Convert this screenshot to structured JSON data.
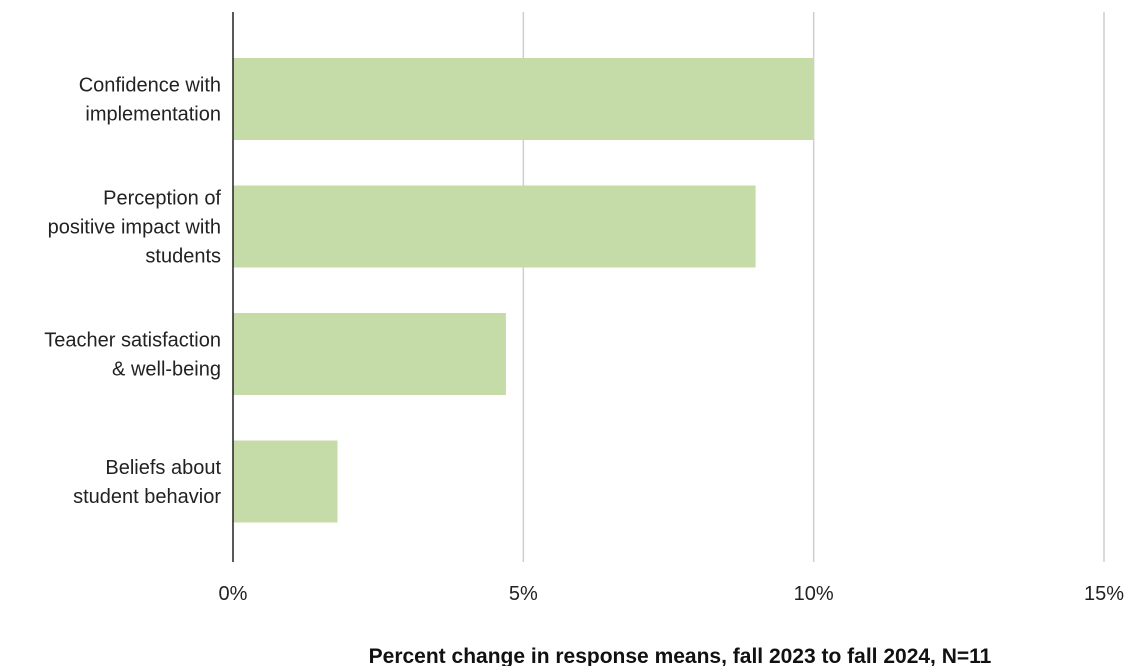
{
  "chart_data": {
    "type": "bar",
    "orientation": "horizontal",
    "title": "",
    "categories": [
      [
        "Confidence with",
        "implementation"
      ],
      [
        "Perception of",
        "positive impact with",
        "students"
      ],
      [
        "Teacher satisfaction",
        "& well-being"
      ],
      [
        "Beliefs about",
        "student behavior"
      ]
    ],
    "values": [
      10.0,
      9.0,
      4.7,
      1.8
    ],
    "xlim": [
      0,
      15
    ],
    "xticks": [
      0,
      5,
      10,
      15
    ],
    "xtick_labels": [
      "0%",
      "5%",
      "10%",
      "15%"
    ],
    "xlabel": "Percent change in response means, fall 2023 to fall 2024, N=11",
    "ylabel": "",
    "grid": "vertical",
    "legend": "none",
    "colors": {
      "bar": "#c5dba8",
      "grid": "#cfcfcf",
      "axis": "#222222",
      "title": "#1f5f4f"
    }
  }
}
